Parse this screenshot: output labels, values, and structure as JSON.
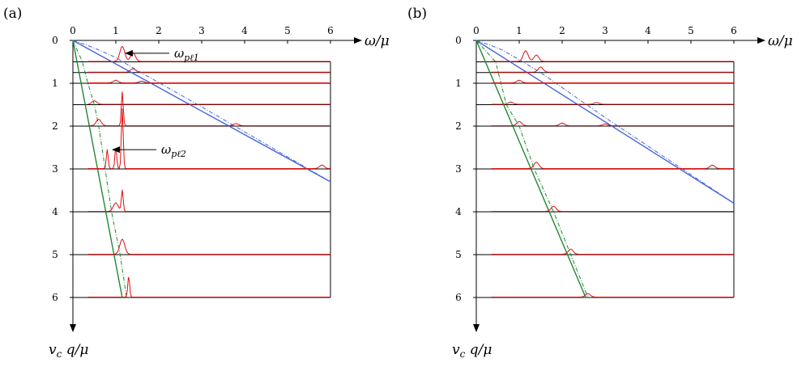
{
  "chart_data": [
    {
      "type": "line",
      "panel_label": "(a)",
      "xlabel": "ω/μ",
      "ylabel": "v_c q/μ",
      "xlim": [
        0,
        6
      ],
      "ylim": [
        0,
        6
      ],
      "x_ticks": [
        "0",
        "1",
        "2",
        "3",
        "4",
        "5",
        "6"
      ],
      "y_ticks": [
        "0",
        "1",
        "2",
        "3",
        "4",
        "5",
        "6"
      ],
      "baselines": [
        0.5,
        0.75,
        1,
        1.5,
        2,
        3,
        4,
        5,
        6
      ],
      "series": [
        {
          "color": "#4466dd",
          "style": "solid",
          "points": [
            [
              0,
              0
            ],
            [
              6,
              3.3
            ]
          ]
        },
        {
          "color": "#4466dd",
          "style": "dashdot",
          "points": [
            [
              0,
              0
            ],
            [
              0.3,
              0.1
            ],
            [
              0.6,
              0.22
            ],
            [
              1.0,
              0.4
            ],
            [
              1.5,
              0.7
            ],
            [
              3,
              1.55
            ],
            [
              6,
              3.3
            ]
          ]
        },
        {
          "color": "#228833",
          "style": "solid",
          "points": [
            [
              0,
              0
            ],
            [
              1.15,
              6
            ]
          ]
        },
        {
          "color": "#228833",
          "style": "dashdot",
          "points": [
            [
              0,
              0
            ],
            [
              0.22,
              0.5
            ],
            [
              0.35,
              1
            ],
            [
              0.5,
              1.5
            ],
            [
              0.6,
              2
            ],
            [
              0.75,
              3
            ],
            [
              0.9,
              4
            ],
            [
              1.1,
              5
            ],
            [
              1.25,
              6
            ]
          ]
        }
      ],
      "spectra": [
        {
          "q": 0.5,
          "peaks": [
            [
              1.15,
              0.35
            ],
            [
              1.4,
              0.2
            ]
          ]
        },
        {
          "q": 0.75,
          "peaks": [
            [
              1.4,
              0.08
            ]
          ]
        },
        {
          "q": 1,
          "peaks": [
            [
              1.0,
              0.06
            ],
            [
              1.6,
              0.04
            ]
          ]
        },
        {
          "q": 1.5,
          "peaks": [
            [
              0.5,
              0.08
            ]
          ]
        },
        {
          "q": 2,
          "peaks": [
            [
              0.6,
              0.15
            ],
            [
              1.15,
              0.8
            ],
            [
              3.8,
              0.05
            ]
          ]
        },
        {
          "q": 3,
          "peaks": [
            [
              0.8,
              0.45
            ],
            [
              1.0,
              0.5
            ],
            [
              1.15,
              1.4
            ],
            [
              5.8,
              0.08
            ]
          ]
        },
        {
          "q": 4,
          "peaks": [
            [
              1.0,
              0.2
            ],
            [
              1.15,
              0.5
            ]
          ]
        },
        {
          "q": 5,
          "peaks": [
            [
              1.15,
              0.35
            ]
          ]
        },
        {
          "q": 6,
          "peaks": [
            [
              1.3,
              0.5
            ]
          ]
        }
      ],
      "annotations": [
        {
          "text": "ω_pℓ1",
          "x": 1.15,
          "y": 0.3
        },
        {
          "text": "ω_pℓ2",
          "x": 0.85,
          "y": 2.55
        }
      ]
    },
    {
      "type": "line",
      "panel_label": "(b)",
      "xlabel": "ω/μ",
      "ylabel": "v_c q/μ",
      "xlim": [
        0,
        6
      ],
      "ylim": [
        0,
        6
      ],
      "x_ticks": [
        "0",
        "1",
        "2",
        "3",
        "4",
        "5",
        "6"
      ],
      "y_ticks": [
        "0",
        "1",
        "2",
        "3",
        "4",
        "5",
        "6"
      ],
      "baselines": [
        0.5,
        0.75,
        1,
        1.5,
        2,
        3,
        4,
        5,
        6
      ],
      "series": [
        {
          "color": "#4466dd",
          "style": "solid",
          "points": [
            [
              0,
              0
            ],
            [
              6,
              3.8
            ]
          ]
        },
        {
          "color": "#4466dd",
          "style": "dashdot",
          "points": [
            [
              0,
              0
            ],
            [
              0.3,
              0.1
            ],
            [
              0.6,
              0.22
            ],
            [
              1.0,
              0.45
            ],
            [
              1.5,
              0.75
            ],
            [
              3,
              1.8
            ],
            [
              6,
              3.8
            ]
          ]
        },
        {
          "color": "#228833",
          "style": "solid",
          "points": [
            [
              0,
              0
            ],
            [
              2.55,
              6
            ]
          ]
        },
        {
          "color": "#228833",
          "style": "dashdot",
          "points": [
            [
              0,
              0
            ],
            [
              0.45,
              0.5
            ],
            [
              0.7,
              1.5
            ],
            [
              1.0,
              2
            ],
            [
              1.35,
              3
            ],
            [
              1.8,
              4
            ],
            [
              2.2,
              5
            ],
            [
              2.6,
              6
            ]
          ]
        }
      ],
      "spectra": [
        {
          "q": 0.5,
          "peaks": [
            [
              1.15,
              0.25
            ],
            [
              1.4,
              0.15
            ]
          ]
        },
        {
          "q": 0.75,
          "peaks": [
            [
              1.5,
              0.12
            ]
          ]
        },
        {
          "q": 1,
          "peaks": [
            [
              1.0,
              0.06
            ]
          ]
        },
        {
          "q": 1.5,
          "peaks": [
            [
              0.8,
              0.05
            ],
            [
              2.8,
              0.04
            ]
          ]
        },
        {
          "q": 2,
          "peaks": [
            [
              1.0,
              0.1
            ],
            [
              2.0,
              0.06
            ],
            [
              3.0,
              0.04
            ]
          ]
        },
        {
          "q": 3,
          "peaks": [
            [
              1.4,
              0.15
            ],
            [
              5.5,
              0.08
            ]
          ]
        },
        {
          "q": 4,
          "peaks": [
            [
              1.8,
              0.12
            ]
          ]
        },
        {
          "q": 5,
          "peaks": [
            [
              2.2,
              0.12
            ]
          ]
        },
        {
          "q": 6,
          "peaks": [
            [
              2.6,
              0.08
            ]
          ]
        }
      ],
      "annotations": []
    }
  ]
}
